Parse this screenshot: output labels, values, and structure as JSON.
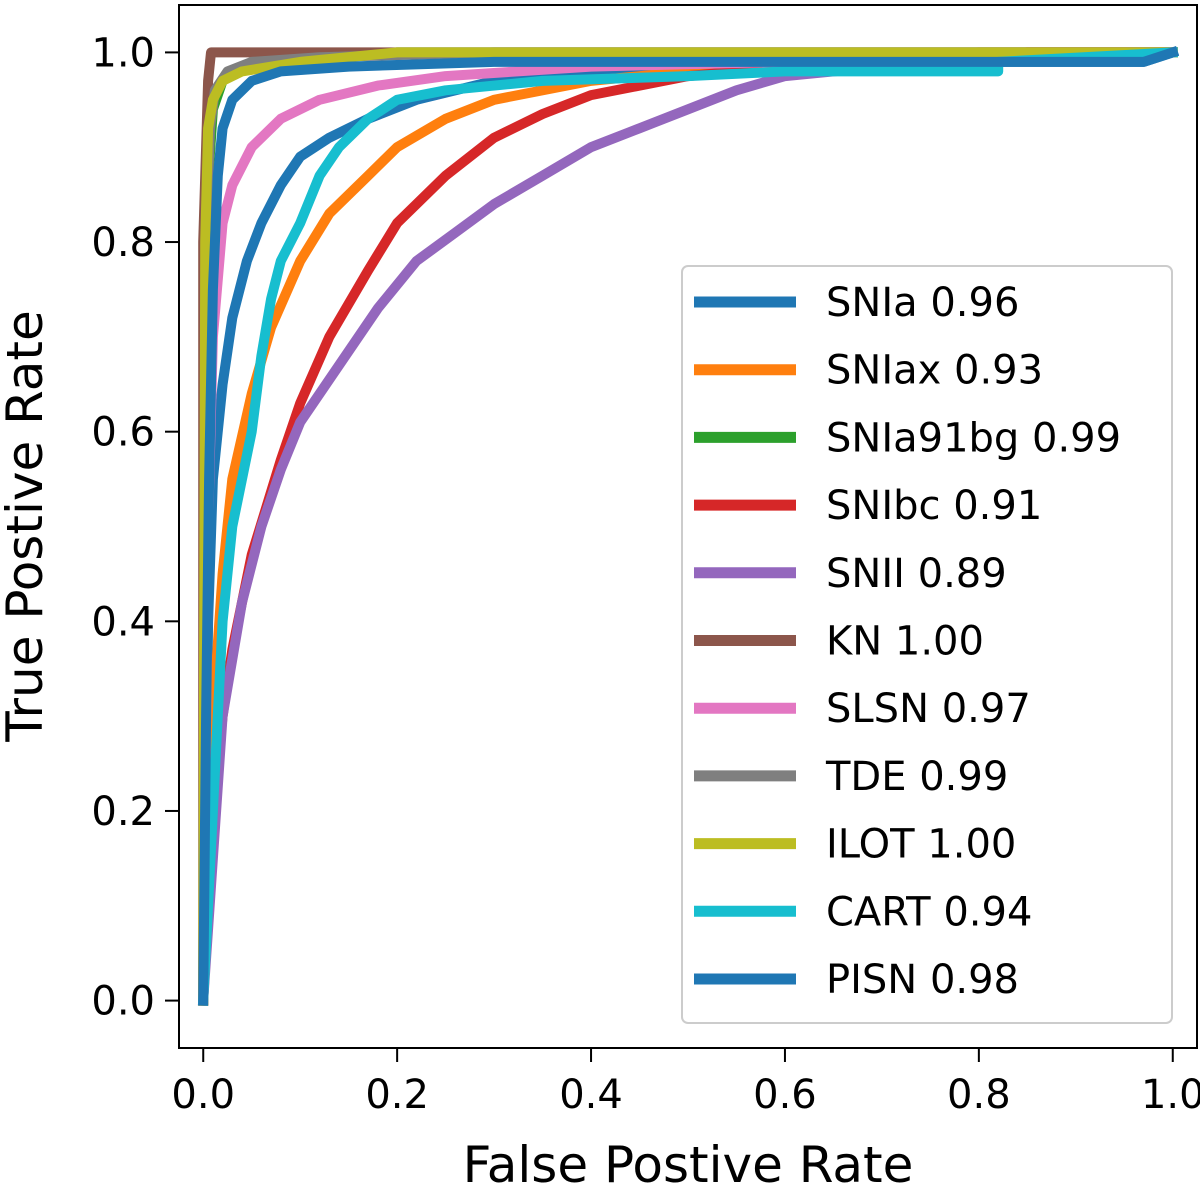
{
  "chart_data": {
    "type": "line",
    "title": "",
    "xlabel": "False Postive Rate",
    "ylabel": "True Postive Rate",
    "xlim": [
      -0.025,
      1.025
    ],
    "ylim": [
      -0.05,
      1.05
    ],
    "xticks": [
      "0.0",
      "0.2",
      "0.4",
      "0.6",
      "0.8",
      "1.0"
    ],
    "yticks": [
      "0.0",
      "0.2",
      "0.4",
      "0.6",
      "0.8",
      "1.0"
    ],
    "grid": false,
    "legend_position": "lower-right",
    "series": [
      {
        "name": "SNIa 0.96",
        "label": "SNIa 0.96",
        "auc": 0.96,
        "color": "#1f77b4",
        "points": [
          [
            0.0,
            0.0
          ],
          [
            0.005,
            0.4
          ],
          [
            0.01,
            0.55
          ],
          [
            0.02,
            0.65
          ],
          [
            0.03,
            0.72
          ],
          [
            0.045,
            0.78
          ],
          [
            0.06,
            0.82
          ],
          [
            0.08,
            0.86
          ],
          [
            0.1,
            0.89
          ],
          [
            0.13,
            0.91
          ],
          [
            0.17,
            0.93
          ],
          [
            0.22,
            0.95
          ],
          [
            0.3,
            0.97
          ],
          [
            0.4,
            0.98
          ],
          [
            0.6,
            0.99
          ],
          [
            0.8,
            0.99
          ],
          [
            0.97,
            0.99
          ],
          [
            1.0,
            1.0
          ]
        ]
      },
      {
        "name": "SNIax 0.93",
        "label": "SNIax 0.93",
        "auc": 0.93,
        "color": "#ff7f0e",
        "points": [
          [
            0.0,
            0.0
          ],
          [
            0.01,
            0.3
          ],
          [
            0.02,
            0.45
          ],
          [
            0.03,
            0.55
          ],
          [
            0.05,
            0.64
          ],
          [
            0.07,
            0.71
          ],
          [
            0.1,
            0.78
          ],
          [
            0.13,
            0.83
          ],
          [
            0.17,
            0.87
          ],
          [
            0.2,
            0.9
          ],
          [
            0.25,
            0.93
          ],
          [
            0.3,
            0.95
          ],
          [
            0.4,
            0.97
          ],
          [
            0.5,
            0.98
          ],
          [
            0.6,
            0.99
          ],
          [
            0.8,
            1.0
          ],
          [
            1.0,
            1.0
          ]
        ]
      },
      {
        "name": "SNIa91bg 0.99",
        "label": "SNIa91bg 0.99",
        "auc": 0.99,
        "color": "#2ca02c",
        "points": [
          [
            0.0,
            0.0
          ],
          [
            0.003,
            0.75
          ],
          [
            0.006,
            0.88
          ],
          [
            0.01,
            0.94
          ],
          [
            0.02,
            0.97
          ],
          [
            0.04,
            0.985
          ],
          [
            0.08,
            0.99
          ],
          [
            0.2,
            1.0
          ],
          [
            1.0,
            1.0
          ]
        ]
      },
      {
        "name": "SNIbc 0.91",
        "label": "SNIbc 0.91",
        "auc": 0.91,
        "color": "#d62728",
        "points": [
          [
            0.0,
            0.0
          ],
          [
            0.01,
            0.2
          ],
          [
            0.02,
            0.3
          ],
          [
            0.03,
            0.37
          ],
          [
            0.05,
            0.47
          ],
          [
            0.08,
            0.57
          ],
          [
            0.1,
            0.63
          ],
          [
            0.13,
            0.7
          ],
          [
            0.17,
            0.77
          ],
          [
            0.2,
            0.82
          ],
          [
            0.25,
            0.87
          ],
          [
            0.3,
            0.91
          ],
          [
            0.35,
            0.935
          ],
          [
            0.4,
            0.955
          ],
          [
            0.5,
            0.975
          ],
          [
            0.6,
            0.985
          ],
          [
            0.7,
            0.99
          ],
          [
            0.85,
            1.0
          ],
          [
            1.0,
            1.0
          ]
        ]
      },
      {
        "name": "SNII 0.89",
        "label": "SNII 0.89",
        "auc": 0.89,
        "color": "#9467bd",
        "points": [
          [
            0.0,
            0.0
          ],
          [
            0.02,
            0.3
          ],
          [
            0.04,
            0.42
          ],
          [
            0.06,
            0.5
          ],
          [
            0.08,
            0.56
          ],
          [
            0.1,
            0.61
          ],
          [
            0.14,
            0.67
          ],
          [
            0.18,
            0.73
          ],
          [
            0.22,
            0.78
          ],
          [
            0.26,
            0.81
          ],
          [
            0.3,
            0.84
          ],
          [
            0.35,
            0.87
          ],
          [
            0.4,
            0.9
          ],
          [
            0.45,
            0.92
          ],
          [
            0.5,
            0.94
          ],
          [
            0.55,
            0.96
          ],
          [
            0.6,
            0.975
          ],
          [
            0.7,
            0.985
          ],
          [
            0.8,
            0.99
          ],
          [
            0.9,
            0.995
          ],
          [
            1.0,
            1.0
          ]
        ]
      },
      {
        "name": "KN 1.00",
        "label": "KN 1.00",
        "auc": 1.0,
        "color": "#8c564b",
        "points": [
          [
            0.0,
            0.0
          ],
          [
            0.0,
            0.8
          ],
          [
            0.003,
            0.9
          ],
          [
            0.005,
            0.97
          ],
          [
            0.008,
            1.0
          ],
          [
            1.0,
            1.0
          ]
        ]
      },
      {
        "name": "SLSN 0.97",
        "label": "SLSN 0.97",
        "auc": 0.97,
        "color": "#e377c2",
        "points": [
          [
            0.0,
            0.0
          ],
          [
            0.005,
            0.5
          ],
          [
            0.01,
            0.7
          ],
          [
            0.02,
            0.82
          ],
          [
            0.03,
            0.86
          ],
          [
            0.05,
            0.9
          ],
          [
            0.08,
            0.93
          ],
          [
            0.12,
            0.95
          ],
          [
            0.18,
            0.965
          ],
          [
            0.25,
            0.975
          ],
          [
            0.4,
            0.985
          ],
          [
            0.6,
            0.99
          ],
          [
            0.8,
            0.995
          ],
          [
            1.0,
            1.0
          ]
        ]
      },
      {
        "name": "TDE 0.99",
        "label": "TDE 0.99",
        "auc": 0.99,
        "color": "#7f7f7f",
        "points": [
          [
            0.0,
            0.0
          ],
          [
            0.003,
            0.8
          ],
          [
            0.007,
            0.92
          ],
          [
            0.012,
            0.96
          ],
          [
            0.025,
            0.98
          ],
          [
            0.05,
            0.99
          ],
          [
            0.12,
            0.995
          ],
          [
            0.3,
            1.0
          ],
          [
            1.0,
            1.0
          ]
        ]
      },
      {
        "name": "ILOT 1.00",
        "label": "ILOT 1.00",
        "auc": 1.0,
        "color": "#bcbd22",
        "points": [
          [
            0.0,
            0.0
          ],
          [
            0.002,
            0.8
          ],
          [
            0.005,
            0.92
          ],
          [
            0.01,
            0.95
          ],
          [
            0.02,
            0.97
          ],
          [
            0.04,
            0.98
          ],
          [
            0.1,
            0.99
          ],
          [
            0.2,
            1.0
          ],
          [
            1.0,
            1.0
          ]
        ]
      },
      {
        "name": "CART 0.94",
        "label": "CART 0.94",
        "auc": 0.94,
        "color": "#17becf",
        "points": [
          [
            0.0,
            0.0
          ],
          [
            0.01,
            0.2
          ],
          [
            0.02,
            0.4
          ],
          [
            0.03,
            0.5
          ],
          [
            0.05,
            0.6
          ],
          [
            0.06,
            0.68
          ],
          [
            0.07,
            0.74
          ],
          [
            0.08,
            0.78
          ],
          [
            0.1,
            0.82
          ],
          [
            0.12,
            0.87
          ],
          [
            0.14,
            0.9
          ],
          [
            0.17,
            0.93
          ],
          [
            0.2,
            0.95
          ],
          [
            0.25,
            0.96
          ],
          [
            0.35,
            0.97
          ],
          [
            0.5,
            0.975
          ],
          [
            0.6,
            0.98
          ],
          [
            0.82,
            0.98
          ],
          [
            0.82,
            0.99
          ],
          [
            1.0,
            1.0
          ]
        ]
      },
      {
        "name": "PISN 0.98",
        "label": "PISN 0.98",
        "auc": 0.98,
        "color": "#1f77b4",
        "points": [
          [
            0.0,
            0.0
          ],
          [
            0.003,
            0.3
          ],
          [
            0.006,
            0.55
          ],
          [
            0.01,
            0.75
          ],
          [
            0.015,
            0.87
          ],
          [
            0.02,
            0.92
          ],
          [
            0.03,
            0.95
          ],
          [
            0.05,
            0.97
          ],
          [
            0.08,
            0.98
          ],
          [
            0.15,
            0.985
          ],
          [
            0.3,
            0.99
          ],
          [
            0.6,
            0.99
          ],
          [
            0.97,
            0.99
          ],
          [
            1.0,
            1.0
          ]
        ]
      }
    ]
  }
}
